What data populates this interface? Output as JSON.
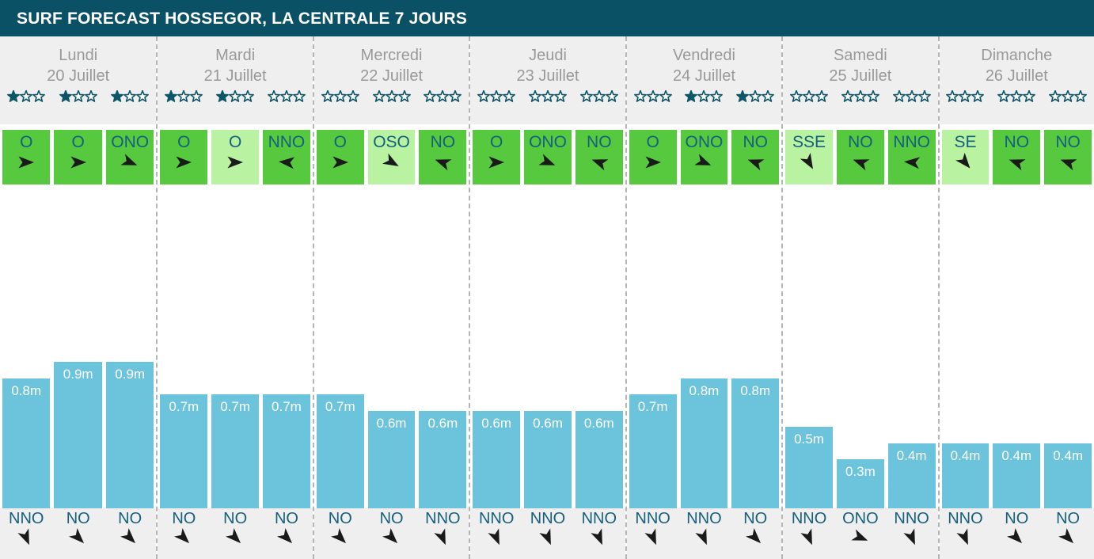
{
  "title": "SURF FORECAST HOSSEGOR, LA CENTRALE 7 JOURS",
  "colors": {
    "header_bg": "#0a5166",
    "panel_bg": "#efefef",
    "day_text": "#999999",
    "star_teal": "#0d5568",
    "label_teal": "#14607e",
    "green_bright": "#57c93e",
    "green_light": "#b9f2a1",
    "arrow": "#1a1a1a",
    "bar": "#6cc4dc",
    "dash": "#b5b5b5"
  },
  "days": [
    {
      "name": "Lundi",
      "date": "20 Juillet",
      "stars": [
        1,
        1,
        1
      ],
      "wind": [
        {
          "dir": "O",
          "deg": 0,
          "tone": "bright"
        },
        {
          "dir": "O",
          "deg": 0,
          "tone": "bright"
        },
        {
          "dir": "ONO",
          "deg": 22,
          "tone": "bright"
        }
      ],
      "waves": [
        0.8,
        0.9,
        0.9
      ],
      "swell": [
        {
          "dir": "NNO",
          "deg": 67
        },
        {
          "dir": "NO",
          "deg": 45
        },
        {
          "dir": "NO",
          "deg": 45
        }
      ]
    },
    {
      "name": "Mardi",
      "date": "21 Juillet",
      "stars": [
        1,
        1,
        0
      ],
      "wind": [
        {
          "dir": "O",
          "deg": 0,
          "tone": "bright"
        },
        {
          "dir": "O",
          "deg": 0,
          "tone": "light"
        },
        {
          "dir": "NNO",
          "deg": 185,
          "tone": "bright"
        }
      ],
      "waves": [
        0.7,
        0.7,
        0.7
      ],
      "swell": [
        {
          "dir": "NO",
          "deg": 45
        },
        {
          "dir": "NO",
          "deg": 45
        },
        {
          "dir": "NO",
          "deg": 45
        }
      ]
    },
    {
      "name": "Mercredi",
      "date": "22 Juillet",
      "stars": [
        0,
        0,
        0
      ],
      "wind": [
        {
          "dir": "O",
          "deg": 0,
          "tone": "bright"
        },
        {
          "dir": "OSO",
          "deg": 30,
          "tone": "light"
        },
        {
          "dir": "NO",
          "deg": 200,
          "tone": "bright"
        }
      ],
      "waves": [
        0.7,
        0.6,
        0.6
      ],
      "swell": [
        {
          "dir": "NO",
          "deg": 45
        },
        {
          "dir": "NO",
          "deg": 45
        },
        {
          "dir": "NNO",
          "deg": 67
        }
      ]
    },
    {
      "name": "Jeudi",
      "date": "23 Juillet",
      "stars": [
        0,
        0,
        0
      ],
      "wind": [
        {
          "dir": "O",
          "deg": 0,
          "tone": "bright"
        },
        {
          "dir": "ONO",
          "deg": 22,
          "tone": "bright"
        },
        {
          "dir": "NO",
          "deg": 200,
          "tone": "bright"
        }
      ],
      "waves": [
        0.6,
        0.6,
        0.6
      ],
      "swell": [
        {
          "dir": "NNO",
          "deg": 67
        },
        {
          "dir": "NNO",
          "deg": 67
        },
        {
          "dir": "NNO",
          "deg": 67
        }
      ]
    },
    {
      "name": "Vendredi",
      "date": "24 Juillet",
      "stars": [
        0,
        1,
        1
      ],
      "wind": [
        {
          "dir": "O",
          "deg": 0,
          "tone": "bright"
        },
        {
          "dir": "ONO",
          "deg": 22,
          "tone": "bright"
        },
        {
          "dir": "NO",
          "deg": 200,
          "tone": "bright"
        }
      ],
      "waves": [
        0.7,
        0.8,
        0.8
      ],
      "swell": [
        {
          "dir": "NNO",
          "deg": 67
        },
        {
          "dir": "NNO",
          "deg": 67
        },
        {
          "dir": "NO",
          "deg": 45
        }
      ]
    },
    {
      "name": "Samedi",
      "date": "25 Juillet",
      "stars": [
        0,
        0,
        0
      ],
      "wind": [
        {
          "dir": "SSE",
          "deg": 60,
          "tone": "light"
        },
        {
          "dir": "NO",
          "deg": 200,
          "tone": "bright"
        },
        {
          "dir": "NNO",
          "deg": 185,
          "tone": "bright"
        }
      ],
      "waves": [
        0.5,
        0.3,
        0.4
      ],
      "swell": [
        {
          "dir": "NNO",
          "deg": 67
        },
        {
          "dir": "ONO",
          "deg": 22
        },
        {
          "dir": "NNO",
          "deg": 67
        }
      ]
    },
    {
      "name": "Dimanche",
      "date": "26 Juillet",
      "stars": [
        0,
        0,
        0
      ],
      "wind": [
        {
          "dir": "SE",
          "deg": 50,
          "tone": "light"
        },
        {
          "dir": "NO",
          "deg": 200,
          "tone": "bright"
        },
        {
          "dir": "NO",
          "deg": 200,
          "tone": "bright"
        }
      ],
      "waves": [
        0.4,
        0.4,
        0.4
      ],
      "swell": [
        {
          "dir": "NNO",
          "deg": 67
        },
        {
          "dir": "NO",
          "deg": 45
        },
        {
          "dir": "NO",
          "deg": 45
        }
      ]
    }
  ],
  "chart_data": {
    "type": "bar",
    "title": "SURF FORECAST HOSSEGOR, LA CENTRALE 7 JOURS",
    "unit": "m",
    "ylim": [
      0,
      1
    ],
    "xlabel": "",
    "ylabel": "",
    "categories": [
      "Lundi 20 Juillet (1)",
      "Lundi 20 Juillet (2)",
      "Lundi 20 Juillet (3)",
      "Mardi 21 Juillet (1)",
      "Mardi 21 Juillet (2)",
      "Mardi 21 Juillet (3)",
      "Mercredi 22 Juillet (1)",
      "Mercredi 22 Juillet (2)",
      "Mercredi 22 Juillet (3)",
      "Jeudi 23 Juillet (1)",
      "Jeudi 23 Juillet (2)",
      "Jeudi 23 Juillet (3)",
      "Vendredi 24 Juillet (1)",
      "Vendredi 24 Juillet (2)",
      "Vendredi 24 Juillet (3)",
      "Samedi 25 Juillet (1)",
      "Samedi 25 Juillet (2)",
      "Samedi 25 Juillet (3)",
      "Dimanche 26 Juillet (1)",
      "Dimanche 26 Juillet (2)",
      "Dimanche 26 Juillet (3)"
    ],
    "values": [
      0.8,
      0.9,
      0.9,
      0.7,
      0.7,
      0.7,
      0.7,
      0.6,
      0.6,
      0.6,
      0.6,
      0.6,
      0.7,
      0.8,
      0.8,
      0.5,
      0.3,
      0.4,
      0.4,
      0.4,
      0.4
    ],
    "star_ratings_per_slot": [
      1,
      1,
      1,
      1,
      1,
      0,
      0,
      0,
      0,
      0,
      0,
      0,
      0,
      1,
      1,
      0,
      0,
      0,
      0,
      0,
      0
    ],
    "star_rating_max": 3
  }
}
